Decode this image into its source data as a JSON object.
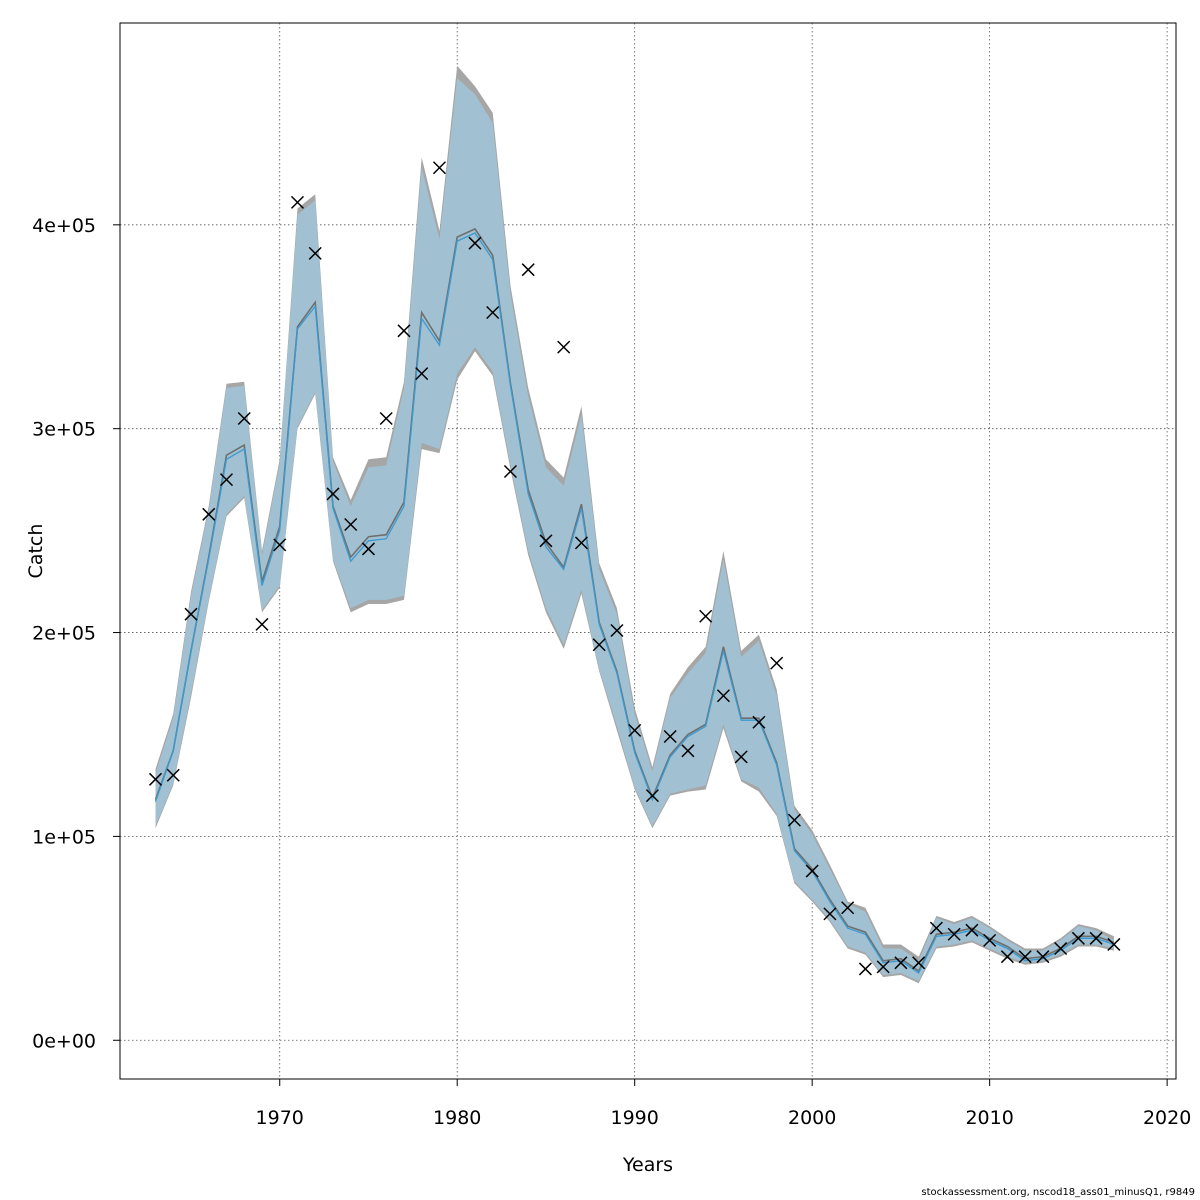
{
  "chart_data": {
    "type": "line",
    "xlabel": "Years",
    "ylabel": "Catch",
    "xlim": [
      1961,
      2020.5
    ],
    "ylim": [
      -19000,
      499000
    ],
    "x_ticks": [
      1970,
      1980,
      1990,
      2000,
      2010,
      2020
    ],
    "y_ticks": [
      0,
      100000,
      200000,
      300000,
      400000
    ],
    "x_tick_labels": [
      "1970",
      "1980",
      "1990",
      "2000",
      "2010",
      "2020"
    ],
    "y_tick_labels": [
      "0e+00",
      "1e+05",
      "2e+05",
      "3e+05",
      "4e+05"
    ],
    "grid": true,
    "footer": "stockassessment.org, nscod18_ass01_minusQ1, r9849",
    "colors": {
      "gray_band": "#a6a6a6",
      "gray_line": "#6f6f6f",
      "blue_band": "#9fcae0",
      "blue_line": "#3a9ad1",
      "band_overlap": "#a2bfcf"
    },
    "series": [
      {
        "role": "estimate",
        "style": "gray",
        "x": [
          1963,
          1964,
          1965,
          1966,
          1967,
          1968,
          1969,
          1970,
          1971,
          1972,
          1973,
          1974,
          1975,
          1976,
          1977,
          1978,
          1979,
          1980,
          1981,
          1982,
          1983,
          1984,
          1985,
          1986,
          1987,
          1988,
          1989,
          1990,
          1991,
          1992,
          1993,
          1994,
          1995,
          1996,
          1997,
          1998,
          1999,
          2000,
          2001,
          2002,
          2003,
          2004,
          2005,
          2006,
          2007,
          2008,
          2009,
          2010,
          2011,
          2012,
          2013,
          2014,
          2015,
          2016,
          2017
        ],
        "y": [
          118000,
          142000,
          191000,
          237000,
          287000,
          292000,
          225000,
          252000,
          350000,
          362000,
          262000,
          237000,
          247000,
          248000,
          264000,
          357000,
          343000,
          394000,
          398000,
          385000,
          322000,
          270000,
          244000,
          232000,
          263000,
          205000,
          181000,
          142000,
          119000,
          140000,
          150000,
          155000,
          193000,
          158000,
          158000,
          136000,
          94000,
          84000,
          69000,
          56000,
          53000,
          39000,
          40000,
          34000,
          52000,
          53000,
          55000,
          50000,
          46000,
          40000,
          41000,
          45000,
          51000,
          51000,
          48000
        ],
        "lower": [
          104000,
          125000,
          168000,
          215000,
          257000,
          266000,
          210000,
          222000,
          300000,
          317000,
          235000,
          210000,
          214000,
          214000,
          216000,
          290000,
          288000,
          324000,
          338000,
          326000,
          280000,
          238000,
          210000,
          192000,
          219000,
          181000,
          152000,
          123000,
          104000,
          120000,
          122000,
          123000,
          153000,
          127000,
          122000,
          110000,
          77000,
          68000,
          58000,
          45000,
          42000,
          31000,
          32000,
          28000,
          45000,
          46000,
          48000,
          44000,
          40000,
          37000,
          38000,
          41000,
          46000,
          46000,
          44000
        ],
        "upper": [
          133000,
          160000,
          220000,
          262000,
          322000,
          323000,
          240000,
          285000,
          408000,
          415000,
          286000,
          265000,
          285000,
          286000,
          323000,
          433000,
          397000,
          478000,
          468000,
          455000,
          370000,
          320000,
          285000,
          276000,
          311000,
          234000,
          212000,
          163000,
          134000,
          170000,
          183000,
          193000,
          240000,
          191000,
          199000,
          172000,
          115000,
          103000,
          86000,
          68000,
          65000,
          47000,
          47000,
          41000,
          61000,
          58000,
          61000,
          56000,
          50000,
          45000,
          45000,
          50000,
          57000,
          55000,
          51000
        ]
      },
      {
        "role": "estimate",
        "style": "blue",
        "x": [
          1963,
          1964,
          1965,
          1966,
          1967,
          1968,
          1969,
          1970,
          1971,
          1972,
          1973,
          1974,
          1975,
          1976,
          1977,
          1978,
          1979,
          1980,
          1981,
          1982,
          1983,
          1984,
          1985,
          1986,
          1987,
          1988,
          1989,
          1990,
          1991,
          1992,
          1993,
          1994,
          1995,
          1996,
          1997,
          1998,
          1999,
          2000,
          2001,
          2002,
          2003,
          2004,
          2005,
          2006,
          2007,
          2008,
          2009,
          2010,
          2011,
          2012,
          2013,
          2014,
          2015,
          2016,
          2017
        ],
        "y": [
          117000,
          142000,
          191000,
          236000,
          285000,
          290000,
          223000,
          250000,
          349000,
          360000,
          261000,
          235000,
          245000,
          246000,
          262000,
          354000,
          341000,
          392000,
          396000,
          383000,
          321000,
          268000,
          242000,
          231000,
          261000,
          204000,
          180000,
          141000,
          118000,
          139000,
          149000,
          154000,
          191000,
          157000,
          157000,
          135000,
          93000,
          83000,
          68000,
          55000,
          52000,
          38000,
          39000,
          33000,
          51000,
          52000,
          54000,
          49000,
          45000,
          39000,
          40000,
          44000,
          50000,
          50000,
          47000
        ],
        "lower": [
          105000,
          126000,
          170000,
          216000,
          258000,
          267000,
          211000,
          223000,
          301000,
          318000,
          236000,
          212000,
          216000,
          216000,
          218000,
          293000,
          290000,
          327000,
          340000,
          328000,
          282000,
          240000,
          212000,
          194000,
          221000,
          182000,
          154000,
          124000,
          105000,
          121000,
          123000,
          125000,
          155000,
          128000,
          124000,
          111000,
          78000,
          69000,
          59000,
          46000,
          43000,
          32000,
          33000,
          29000,
          46000,
          47000,
          49000,
          45000,
          41000,
          38000,
          39000,
          42000,
          47000,
          47000,
          45000
        ],
        "upper": [
          131000,
          158000,
          218000,
          260000,
          320000,
          321000,
          238000,
          283000,
          405000,
          412000,
          284000,
          262000,
          281000,
          282000,
          320000,
          428000,
          393000,
          472000,
          464000,
          450000,
          366000,
          316000,
          281000,
          272000,
          307000,
          231000,
          209000,
          160000,
          132000,
          168000,
          180000,
          190000,
          236000,
          188000,
          196000,
          169000,
          113000,
          101000,
          84000,
          67000,
          63000,
          45000,
          45000,
          39000,
          60000,
          57000,
          60000,
          55000,
          49000,
          44000,
          44000,
          49000,
          56000,
          54000,
          49000
        ]
      },
      {
        "role": "observed",
        "marker": "x",
        "x": [
          1963,
          1964,
          1965,
          1966,
          1967,
          1968,
          1969,
          1970,
          1971,
          1972,
          1973,
          1974,
          1975,
          1976,
          1977,
          1978,
          1979,
          1981,
          1982,
          1983,
          1984,
          1985,
          1986,
          1987,
          1988,
          1989,
          1990,
          1991,
          1992,
          1993,
          1994,
          1995,
          1996,
          1997,
          1998,
          1999,
          2000,
          2001,
          2002,
          2003,
          2004,
          2005,
          2006,
          2007,
          2008,
          2009,
          2010,
          2011,
          2012,
          2013,
          2014,
          2015,
          2016,
          2017
        ],
        "y": [
          128000,
          130000,
          209000,
          258000,
          275000,
          305000,
          204000,
          243000,
          411000,
          386000,
          268000,
          253000,
          241000,
          305000,
          348000,
          327000,
          428000,
          391000,
          357000,
          279000,
          378000,
          245000,
          340000,
          244000,
          194000,
          201000,
          152000,
          120000,
          149000,
          142000,
          208000,
          169000,
          139000,
          156000,
          185000,
          108000,
          83000,
          62000,
          65000,
          35000,
          36000,
          38000,
          38000,
          55000,
          52000,
          54000,
          49000,
          41000,
          41000,
          41000,
          45000,
          50000,
          50000,
          47000
        ]
      }
    ]
  }
}
